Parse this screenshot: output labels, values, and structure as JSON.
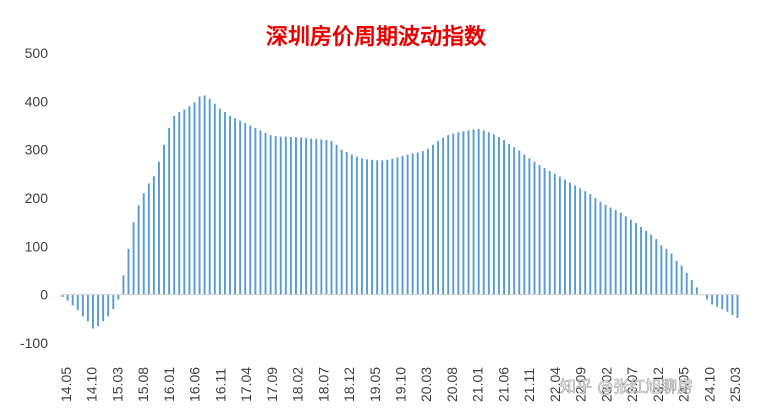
{
  "watermark": "知乎 @张红旭聊房",
  "chart_data": {
    "type": "bar",
    "title": "深圳房价周期波动指数",
    "xlabel": "",
    "ylabel": "",
    "ylim": [
      -100,
      500
    ],
    "yticks": [
      500,
      400,
      300,
      200,
      100,
      0,
      -100
    ],
    "xtick_labels": [
      "14.05",
      "14.10",
      "15.03",
      "15.08",
      "16.01",
      "16.06",
      "16.11",
      "17.04",
      "17.09",
      "18.02",
      "18.07",
      "18.12",
      "19.05",
      "19.10",
      "20.03",
      "20.08",
      "21.01",
      "21.06",
      "21.11",
      "22.04",
      "22.09",
      "23.02",
      "23.07",
      "23.12",
      "24.05",
      "24.10",
      "25.03"
    ],
    "grid": false,
    "legend": "none",
    "bar_color": "#5b9bd5",
    "values": [
      -5,
      -12,
      -22,
      -32,
      -45,
      -55,
      -70,
      -65,
      -55,
      -45,
      -30,
      -10,
      40,
      95,
      150,
      185,
      210,
      230,
      245,
      275,
      310,
      345,
      370,
      378,
      383,
      390,
      398,
      410,
      412,
      405,
      395,
      385,
      378,
      370,
      365,
      360,
      355,
      350,
      345,
      340,
      335,
      330,
      328,
      327,
      327,
      326,
      326,
      325,
      324,
      323,
      322,
      321,
      320,
      318,
      310,
      300,
      295,
      290,
      285,
      282,
      280,
      279,
      278,
      278,
      279,
      281,
      284,
      287,
      290,
      292,
      294,
      297,
      302,
      310,
      318,
      325,
      330,
      333,
      336,
      338,
      340,
      342,
      343,
      340,
      336,
      332,
      326,
      320,
      312,
      305,
      298,
      290,
      282,
      275,
      268,
      262,
      256,
      250,
      244,
      238,
      232,
      226,
      220,
      214,
      208,
      200,
      192,
      186,
      180,
      175,
      170,
      162,
      155,
      148,
      140,
      132,
      124,
      115,
      102,
      95,
      85,
      70,
      60,
      45,
      30,
      15,
      0,
      -10,
      -20,
      -25,
      -30,
      -35,
      -42,
      -48
    ]
  }
}
